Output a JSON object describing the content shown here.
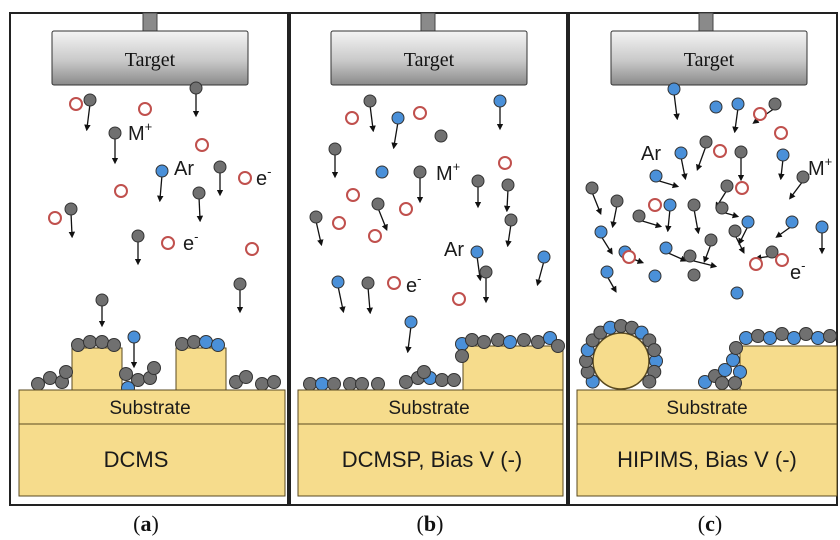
{
  "panels": [
    {
      "id": "a",
      "target_label": "Target",
      "substrate_label": "Substrate",
      "method_label": "DCMS",
      "caption_letter": "a",
      "species_labels": [
        {
          "text": "M",
          "sup": "+",
          "kind": "metal-ion-label"
        },
        {
          "text": "Ar",
          "sup": "",
          "kind": "argon-label"
        },
        {
          "text": "e",
          "sup": "-",
          "kind": "electron-label"
        },
        {
          "text": "e",
          "sup": "-",
          "kind": "electron-label"
        }
      ]
    },
    {
      "id": "b",
      "target_label": "Target",
      "substrate_label": "Substrate",
      "method_label": "DCMSP, Bias V (-)",
      "caption_letter": "b",
      "species_labels": [
        {
          "text": "M",
          "sup": "+",
          "kind": "metal-ion-label"
        },
        {
          "text": "Ar",
          "sup": "",
          "kind": "argon-label"
        },
        {
          "text": "e",
          "sup": "-",
          "kind": "electron-label"
        }
      ]
    },
    {
      "id": "c",
      "target_label": "Target",
      "substrate_label": "Substrate",
      "method_label": "HIPIMS, Bias V (-)",
      "caption_letter": "c",
      "species_labels": [
        {
          "text": "Ar",
          "sup": "",
          "kind": "argon-label"
        },
        {
          "text": "M",
          "sup": "+",
          "kind": "metal-ion-label"
        },
        {
          "text": "e",
          "sup": "-",
          "kind": "electron-label"
        }
      ]
    }
  ],
  "colors": {
    "metal_atom": "#707070",
    "metal_ion": "#4a90d9",
    "argon": "#c0504d",
    "substrate": "#f6dc8c",
    "substrate_stroke": "#5a4a20",
    "target_top": "#f2f2f2",
    "target_bottom": "#8e8e8e",
    "panel_border": "#222222"
  }
}
